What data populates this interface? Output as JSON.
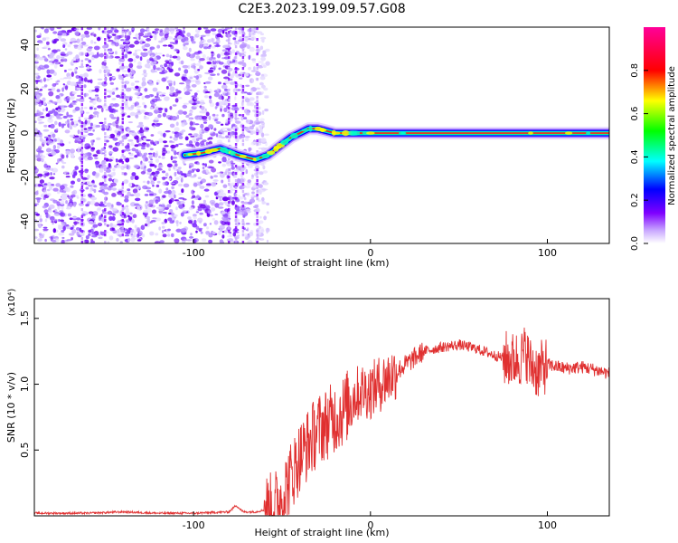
{
  "figure_title": "C2E3.2023.199.09.57.G08",
  "chart_data": [
    {
      "type": "heatmap",
      "name": "spectrogram",
      "xlabel": "Height of straight line (km)",
      "ylabel": "Frequency (Hz)",
      "xlim": [
        -190,
        135
      ],
      "ylim": [
        -50,
        48
      ],
      "xticks": [
        -100,
        0,
        100
      ],
      "xtick_labels": [
        "-100",
        "0",
        "100"
      ],
      "yticks": [
        -40,
        -20,
        0,
        20,
        40
      ],
      "ytick_labels": [
        "-40",
        "-20",
        "0",
        "20",
        "40"
      ],
      "ridge": [
        {
          "x": -105,
          "y": -10
        },
        {
          "x": -95,
          "y": -9
        },
        {
          "x": -85,
          "y": -7
        },
        {
          "x": -75,
          "y": -10
        },
        {
          "x": -65,
          "y": -12
        },
        {
          "x": -58,
          "y": -10
        },
        {
          "x": -50,
          "y": -5
        },
        {
          "x": -45,
          "y": -2
        },
        {
          "x": -40,
          "y": 0
        },
        {
          "x": -35,
          "y": 2
        },
        {
          "x": -30,
          "y": 2
        },
        {
          "x": -25,
          "y": 1
        },
        {
          "x": -20,
          "y": 0
        },
        {
          "x": -10,
          "y": 0
        },
        {
          "x": 0,
          "y": 0
        },
        {
          "x": 50,
          "y": 0
        },
        {
          "x": 100,
          "y": 0
        },
        {
          "x": 135,
          "y": 0
        }
      ],
      "colorbar": {
        "label": "Normalized spectral amplitude",
        "range": [
          0,
          1
        ],
        "ticks": [
          0.0,
          0.2,
          0.4,
          0.6,
          0.8
        ],
        "tick_labels": [
          "0.0",
          "0.2",
          "0.4",
          "0.6",
          "0.8"
        ],
        "colors": [
          "#ffffff",
          "#7f00ff",
          "#0000ff",
          "#00ffff",
          "#00ff00",
          "#ffff00",
          "#ff0000",
          "#ff00aa"
        ]
      }
    },
    {
      "type": "line",
      "name": "snr",
      "xlabel": "Height of straight line (km)",
      "ylabel": "SNR (10 * v/v)",
      "y_multiplier": "(x10⁴)",
      "xlim": [
        -190,
        135
      ],
      "ylim": [
        0,
        1.65
      ],
      "xticks": [
        -100,
        0,
        100
      ],
      "xtick_labels": [
        "-100",
        "0",
        "100"
      ],
      "yticks": [
        0.5,
        1.0,
        1.5
      ],
      "ytick_labels": [
        "0.5",
        "1.0",
        "1.5"
      ],
      "series": [
        {
          "name": "SNR",
          "color": "#e03030",
          "x": [
            -190,
            -160,
            -140,
            -120,
            -100,
            -80,
            -76,
            -72,
            -65,
            -55,
            -50,
            -45,
            -40,
            -35,
            -30,
            -25,
            -20,
            -15,
            -10,
            -5,
            0,
            5,
            10,
            15,
            20,
            25,
            30,
            40,
            50,
            60,
            70,
            80,
            85,
            88,
            90,
            95,
            100,
            110,
            120,
            130,
            135
          ],
          "y": [
            0.02,
            0.02,
            0.03,
            0.02,
            0.02,
            0.03,
            0.08,
            0.03,
            0.03,
            0.06,
            0.15,
            0.3,
            0.45,
            0.55,
            0.65,
            0.7,
            0.75,
            0.8,
            0.9,
            0.95,
            0.95,
            1.0,
            1.05,
            1.1,
            1.15,
            1.2,
            1.25,
            1.28,
            1.3,
            1.27,
            1.22,
            1.18,
            1.2,
            1.25,
            1.15,
            1.1,
            1.15,
            1.12,
            1.13,
            1.1,
            1.08
          ]
        }
      ]
    }
  ]
}
